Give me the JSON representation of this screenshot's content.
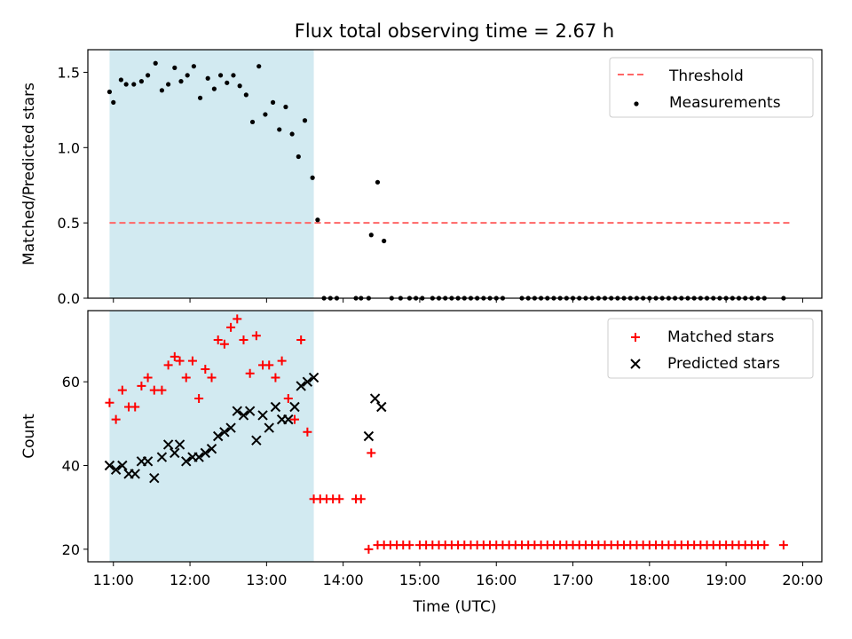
{
  "title": "Flux total observing time = 2.67 h",
  "colors": {
    "band": "#add8e6",
    "threshold": "#ff6666",
    "matched": "#ff0000",
    "predicted": "#000000",
    "measurements": "#000000"
  },
  "chart_data": [
    {
      "type": "scatter",
      "ylabel": "Matched/Predicted stars",
      "xlim": [
        "10:40",
        "20:15"
      ],
      "ylim": [
        0,
        1.65
      ],
      "yticks": [
        0.0,
        0.5,
        1.0,
        1.5
      ],
      "ytick_labels": [
        "0.0",
        "0.5",
        "1.0",
        "1.5"
      ],
      "shaded_span": [
        "10:57",
        "13:37"
      ],
      "threshold": {
        "name": "Threshold",
        "y": 0.5,
        "x_range": [
          "10:57",
          "19:50"
        ]
      },
      "legend": [
        "Threshold",
        "Measurements"
      ],
      "legend_position": "upper right",
      "series": [
        {
          "name": "Measurements",
          "x": [
            "10:57",
            "11:00",
            "11:06",
            "11:10",
            "11:16",
            "11:22",
            "11:27",
            "11:33",
            "11:38",
            "11:43",
            "11:48",
            "11:53",
            "11:58",
            "12:03",
            "12:08",
            "12:14",
            "12:19",
            "12:24",
            "12:29",
            "12:34",
            "12:39",
            "12:44",
            "12:49",
            "12:54",
            "12:59",
            "13:05",
            "13:10",
            "13:15",
            "13:20",
            "13:25",
            "13:30",
            "13:36",
            "13:40",
            "13:45",
            "13:50",
            "13:55",
            "14:10",
            "14:14",
            "14:20",
            "14:22",
            "14:27",
            "14:32",
            "14:38",
            "14:45",
            "14:52",
            "14:57",
            "15:02",
            "15:10",
            "15:15",
            "15:20",
            "15:25",
            "15:30",
            "15:35",
            "15:40",
            "15:45",
            "15:50",
            "15:55",
            "16:00",
            "16:05",
            "16:20",
            "16:25",
            "16:30",
            "16:35",
            "16:40",
            "16:45",
            "16:50",
            "16:55",
            "17:00",
            "17:05",
            "17:10",
            "17:15",
            "17:20",
            "17:25",
            "17:30",
            "17:35",
            "17:40",
            "17:45",
            "17:50",
            "17:55",
            "18:00",
            "18:05",
            "18:10",
            "18:15",
            "18:20",
            "18:25",
            "18:30",
            "18:35",
            "18:40",
            "18:45",
            "18:50",
            "18:55",
            "19:00",
            "19:05",
            "19:10",
            "19:15",
            "19:20",
            "19:25",
            "19:30",
            "19:45"
          ],
          "y": [
            1.37,
            1.3,
            1.45,
            1.42,
            1.42,
            1.44,
            1.48,
            1.56,
            1.38,
            1.42,
            1.53,
            1.44,
            1.48,
            1.54,
            1.33,
            1.46,
            1.39,
            1.48,
            1.43,
            1.48,
            1.41,
            1.35,
            1.17,
            1.54,
            1.22,
            1.3,
            1.12,
            1.27,
            1.09,
            0.94,
            1.18,
            0.8,
            0.52,
            0.0,
            0.0,
            0.0,
            0.0,
            0.0,
            0.0,
            0.42,
            0.77,
            0.38,
            0.0,
            0.0,
            0.0,
            0.0,
            0.0,
            0.0,
            0.0,
            0.0,
            0.0,
            0.0,
            0.0,
            0.0,
            0.0,
            0.0,
            0.0,
            0.0,
            0.0,
            0.0,
            0.0,
            0.0,
            0.0,
            0.0,
            0.0,
            0.0,
            0.0,
            0.0,
            0.0,
            0.0,
            0.0,
            0.0,
            0.0,
            0.0,
            0.0,
            0.0,
            0.0,
            0.0,
            0.0,
            0.0,
            0.0,
            0.0,
            0.0,
            0.0,
            0.0,
            0.0,
            0.0,
            0.0,
            0.0,
            0.0,
            0.0,
            0.0,
            0.0,
            0.0,
            0.0,
            0.0,
            0.0,
            0.0,
            0.0
          ]
        }
      ]
    },
    {
      "type": "scatter",
      "xlabel": "Time (UTC)",
      "ylabel": "Count",
      "xlim": [
        "10:40",
        "20:15"
      ],
      "ylim": [
        17,
        77
      ],
      "yticks": [
        20,
        40,
        60
      ],
      "xticks": [
        "11:00",
        "12:00",
        "13:00",
        "14:00",
        "15:00",
        "16:00",
        "17:00",
        "18:00",
        "19:00",
        "20:00"
      ],
      "shaded_span": [
        "10:57",
        "13:37"
      ],
      "legend": [
        "Matched stars",
        "Predicted stars"
      ],
      "legend_position": "upper right",
      "series": [
        {
          "name": "Matched stars",
          "marker": "+",
          "x": [
            "10:57",
            "11:02",
            "11:07",
            "11:12",
            "11:17",
            "11:22",
            "11:27",
            "11:32",
            "11:38",
            "11:43",
            "11:48",
            "11:52",
            "11:57",
            "12:02",
            "12:07",
            "12:12",
            "12:17",
            "12:22",
            "12:27",
            "12:32",
            "12:37",
            "12:42",
            "12:47",
            "12:52",
            "12:57",
            "13:02",
            "13:07",
            "13:12",
            "13:17",
            "13:22",
            "13:27",
            "13:32",
            "13:37",
            "13:42",
            "13:47",
            "13:52",
            "13:57",
            "14:10",
            "14:14",
            "14:20",
            "14:22",
            "14:27",
            "14:32",
            "14:37",
            "14:42",
            "14:47",
            "14:52",
            "15:00",
            "15:05",
            "15:10",
            "15:15",
            "15:20",
            "15:25",
            "15:30",
            "15:35",
            "15:40",
            "15:45",
            "15:50",
            "15:55",
            "16:00",
            "16:05",
            "16:10",
            "16:15",
            "16:20",
            "16:25",
            "16:30",
            "16:35",
            "16:40",
            "16:45",
            "16:50",
            "16:55",
            "17:00",
            "17:05",
            "17:10",
            "17:15",
            "17:20",
            "17:25",
            "17:30",
            "17:35",
            "17:40",
            "17:45",
            "17:50",
            "17:55",
            "18:00",
            "18:05",
            "18:10",
            "18:15",
            "18:20",
            "18:25",
            "18:30",
            "18:35",
            "18:40",
            "18:45",
            "18:50",
            "18:55",
            "19:00",
            "19:05",
            "19:10",
            "19:15",
            "19:20",
            "19:25",
            "19:30",
            "19:45"
          ],
          "y": [
            55,
            51,
            58,
            54,
            54,
            59,
            61,
            58,
            58,
            64,
            66,
            65,
            61,
            65,
            56,
            63,
            61,
            70,
            69,
            73,
            75,
            70,
            62,
            71,
            64,
            64,
            61,
            65,
            56,
            51,
            70,
            48,
            32,
            32,
            32,
            32,
            32,
            32,
            32,
            20,
            43,
            21,
            21,
            21,
            21,
            21,
            21,
            21,
            21,
            21,
            21,
            21,
            21,
            21,
            21,
            21,
            21,
            21,
            21,
            21,
            21,
            21,
            21,
            21,
            21,
            21,
            21,
            21,
            21,
            21,
            21,
            21,
            21,
            21,
            21,
            21,
            21,
            21,
            21,
            21,
            21,
            21,
            21,
            21,
            21,
            21,
            21,
            21,
            21,
            21,
            21,
            21,
            21,
            21,
            21,
            21,
            21,
            21,
            21,
            21,
            21,
            21,
            21
          ]
        },
        {
          "name": "Predicted stars",
          "marker": "x",
          "x": [
            "10:57",
            "11:02",
            "11:07",
            "11:12",
            "11:17",
            "11:22",
            "11:27",
            "11:32",
            "11:38",
            "11:43",
            "11:48",
            "11:52",
            "11:57",
            "12:02",
            "12:07",
            "12:12",
            "12:17",
            "12:22",
            "12:27",
            "12:32",
            "12:37",
            "12:42",
            "12:47",
            "12:52",
            "12:57",
            "13:02",
            "13:07",
            "13:12",
            "13:17",
            "13:22",
            "13:27",
            "13:32",
            "13:37",
            "14:20",
            "14:25",
            "14:30"
          ],
          "y": [
            40,
            39,
            40,
            38,
            38,
            41,
            41,
            37,
            42,
            45,
            43,
            45,
            41,
            42,
            42,
            43,
            44,
            47,
            48,
            49,
            53,
            52,
            53,
            46,
            52,
            49,
            54,
            51,
            51,
            54,
            59,
            60,
            61,
            47,
            56,
            54
          ]
        }
      ]
    }
  ]
}
